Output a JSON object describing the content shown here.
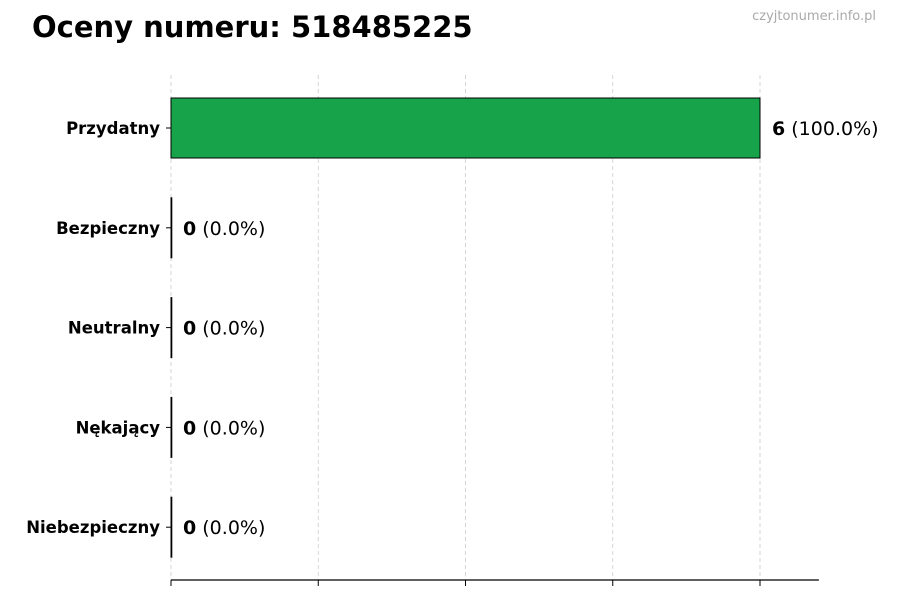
{
  "title": "Oceny numeru: 518485225",
  "watermark": "czyjtonumer.info.pl",
  "chart_data": {
    "type": "bar",
    "orientation": "horizontal",
    "categories": [
      "Przydatny",
      "Bezpieczny",
      "Neutralny",
      "Nękający",
      "Niebezpieczny"
    ],
    "values": [
      6,
      0,
      0,
      0,
      0
    ],
    "data_labels": [
      {
        "value": "6",
        "percent": "(100.0%)"
      },
      {
        "value": "0",
        "percent": "(0.0%)"
      },
      {
        "value": "0",
        "percent": "(0.0%)"
      },
      {
        "value": "0",
        "percent": "(0.0%)"
      },
      {
        "value": "0",
        "percent": "(0.0%)"
      }
    ],
    "colors": [
      "#17a34a",
      "#17a34a",
      "#17a34a",
      "#17a34a",
      "#17a34a"
    ],
    "xlim": [
      0,
      6.6
    ],
    "xticks": [
      0,
      1.5,
      3,
      4.5,
      6
    ],
    "xtick_labels_shown": false,
    "grid": "vertical dashed",
    "xlabel": "",
    "ylabel": ""
  }
}
